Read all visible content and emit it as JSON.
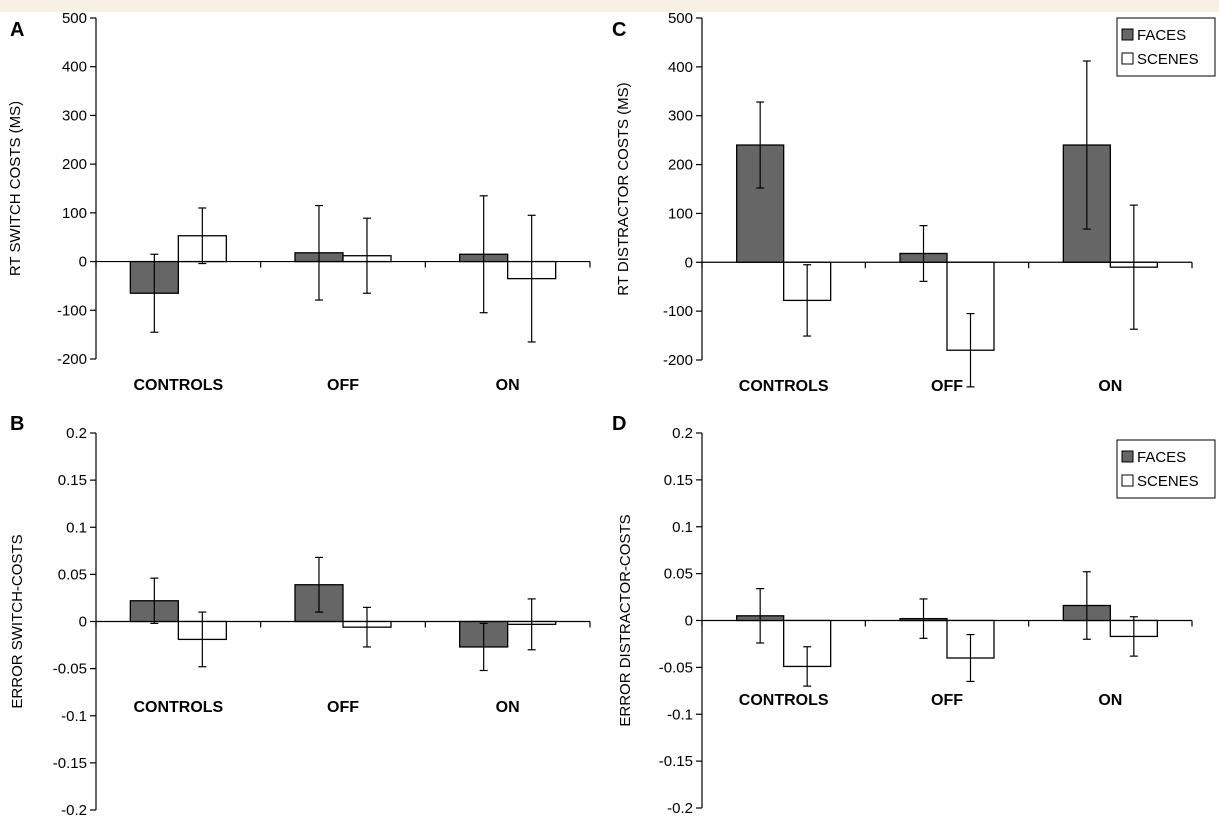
{
  "colors": {
    "faces": "#666666",
    "scenes": "#ffffff",
    "stroke": "#000000",
    "top_strip": "#f8f1e3"
  },
  "chart_data": [
    {
      "panel": "A",
      "type": "bar",
      "ylabel": "RT SWITCH COSTS (MS)",
      "categories": [
        "CONTROLS",
        "OFF",
        "ON"
      ],
      "yticks": [
        "500",
        "400",
        "300",
        "200",
        "100",
        "0",
        "-100",
        "-200"
      ],
      "ylim": [
        -200,
        500
      ],
      "series": [
        {
          "values": [
            -65,
            18,
            15
          ],
          "errors": [
            80,
            97,
            120
          ]
        },
        {
          "values": [
            53,
            12,
            -35
          ],
          "errors": [
            57,
            77,
            130
          ]
        }
      ],
      "legend": null
    },
    {
      "panel": "B",
      "type": "bar",
      "ylabel": "ERROR SWITCH-COSTS",
      "categories": [
        "CONTROLS",
        "OFF",
        "ON"
      ],
      "yticks": [
        "0.2",
        "0.15",
        "0.1",
        "0.05",
        "0",
        "-0.05",
        "-0.1",
        "-0.15",
        "-0.2"
      ],
      "ylim": [
        -0.2,
        0.2
      ],
      "series": [
        {
          "values": [
            0.022,
            0.039,
            -0.027
          ],
          "errors": [
            0.024,
            0.029,
            0.025
          ]
        },
        {
          "values": [
            -0.019,
            -0.006,
            -0.003
          ],
          "errors": [
            0.029,
            0.021,
            0.027
          ]
        }
      ],
      "legend": null
    },
    {
      "panel": "C",
      "type": "bar",
      "ylabel": "RT DISTRACTOR COSTS (MS)",
      "categories": [
        "CONTROLS",
        "OFF",
        "ON"
      ],
      "yticks": [
        "500",
        "400",
        "300",
        "200",
        "100",
        "0",
        "-100",
        "-200"
      ],
      "ylim": [
        -200,
        500
      ],
      "series": [
        {
          "name": "FACES",
          "values": [
            240,
            18,
            240
          ],
          "errors": [
            88,
            57,
            172
          ]
        },
        {
          "name": "SCENES",
          "values": [
            -78,
            -180,
            -10
          ],
          "errors": [
            73,
            75,
            127
          ]
        }
      ],
      "legend": {
        "position": "top-right",
        "entries": [
          "FACES",
          "SCENES"
        ]
      }
    },
    {
      "panel": "D",
      "type": "bar",
      "ylabel": "ERROR DISTRACTOR-COSTS",
      "categories": [
        "CONTROLS",
        "OFF",
        "ON"
      ],
      "yticks": [
        "0.2",
        "0.15",
        "0.1",
        "0.05",
        "0",
        "-0.05",
        "-0.1",
        "-0.15",
        "-0.2"
      ],
      "ylim": [
        -0.2,
        0.2
      ],
      "series": [
        {
          "name": "FACES",
          "values": [
            0.005,
            0.002,
            0.016
          ],
          "errors": [
            0.029,
            0.021,
            0.036
          ]
        },
        {
          "name": "SCENES",
          "values": [
            -0.049,
            -0.04,
            -0.017
          ],
          "errors": [
            0.021,
            0.025,
            0.021
          ]
        }
      ],
      "legend": {
        "position": "top-right",
        "entries": [
          "FACES",
          "SCENES"
        ]
      }
    }
  ]
}
